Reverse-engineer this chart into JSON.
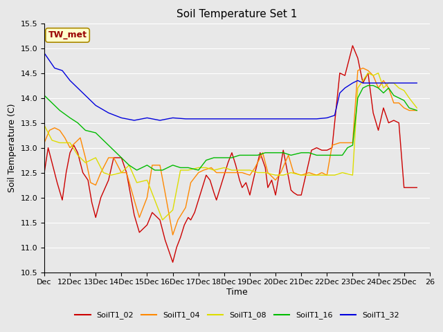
{
  "title": "Soil Temperature Set 1",
  "xlabel": "Time",
  "ylabel": "Soil Temperature (C)",
  "ylim": [
    10.5,
    15.5
  ],
  "xtick_labels": [
    "Dec",
    "12Dec",
    "13Dec",
    "14Dec",
    "15Dec",
    "16Dec",
    "17Dec",
    "18Dec",
    "19Dec",
    "20Dec",
    "21Dec",
    "22Dec",
    "23Dec",
    "24Dec",
    "25Dec",
    "26"
  ],
  "xtick_positions": [
    0,
    1,
    2,
    3,
    4,
    5,
    6,
    7,
    8,
    9,
    10,
    11,
    12,
    13,
    14,
    15
  ],
  "series": {
    "SoilT1_02": {
      "color": "#cc0000",
      "x": [
        0.0,
        0.15,
        0.3,
        0.5,
        0.7,
        0.85,
        1.0,
        1.15,
        1.3,
        1.5,
        1.7,
        1.85,
        2.0,
        2.2,
        2.5,
        2.7,
        3.0,
        3.2,
        3.5,
        3.7,
        4.0,
        4.2,
        4.5,
        4.7,
        5.0,
        5.15,
        5.3,
        5.45,
        5.6,
        5.7,
        5.85,
        6.0,
        6.15,
        6.3,
        6.45,
        6.6,
        6.7,
        6.85,
        7.0,
        7.15,
        7.3,
        7.45,
        7.6,
        7.7,
        7.85,
        8.0,
        8.2,
        8.4,
        8.6,
        8.7,
        8.85,
        9.0,
        9.15,
        9.3,
        9.45,
        9.6,
        9.7,
        9.85,
        10.0,
        10.2,
        10.4,
        10.6,
        10.8,
        11.0,
        11.2,
        11.5,
        11.7,
        12.0,
        12.2,
        12.4,
        12.6,
        12.8,
        13.0,
        13.2,
        13.4,
        13.6,
        13.8,
        14.0,
        14.2,
        14.5
      ],
      "y": [
        12.5,
        13.0,
        12.7,
        12.3,
        11.95,
        12.5,
        12.9,
        13.05,
        12.9,
        12.5,
        12.35,
        11.9,
        11.6,
        12.0,
        12.35,
        12.8,
        12.8,
        12.5,
        11.65,
        11.3,
        11.45,
        11.7,
        11.55,
        11.15,
        10.7,
        11.0,
        11.2,
        11.45,
        11.6,
        11.55,
        11.7,
        11.95,
        12.2,
        12.45,
        12.35,
        12.1,
        11.95,
        12.2,
        12.45,
        12.7,
        12.9,
        12.65,
        12.35,
        12.2,
        12.3,
        12.05,
        12.5,
        12.9,
        12.6,
        12.2,
        12.35,
        12.05,
        12.5,
        12.95,
        12.55,
        12.15,
        12.1,
        12.05,
        12.05,
        12.5,
        12.95,
        13.0,
        12.95,
        12.95,
        13.0,
        14.5,
        14.45,
        15.05,
        14.8,
        14.3,
        14.5,
        13.7,
        13.35,
        13.8,
        13.5,
        13.55,
        13.5,
        12.2,
        12.2,
        12.2
      ]
    },
    "SoilT1_04": {
      "color": "#ff8800",
      "x": [
        0.0,
        0.2,
        0.4,
        0.6,
        0.8,
        1.0,
        1.2,
        1.4,
        1.6,
        1.8,
        2.0,
        2.2,
        2.5,
        2.7,
        3.0,
        3.2,
        3.5,
        3.7,
        4.0,
        4.2,
        4.5,
        4.7,
        5.0,
        5.2,
        5.5,
        5.7,
        6.0,
        6.2,
        6.5,
        6.7,
        7.0,
        7.2,
        7.5,
        7.7,
        8.0,
        8.2,
        8.5,
        8.7,
        9.0,
        9.2,
        9.5,
        9.7,
        10.0,
        10.3,
        10.6,
        10.8,
        11.0,
        11.2,
        11.5,
        11.7,
        12.0,
        12.2,
        12.4,
        12.6,
        12.8,
        13.0,
        13.2,
        13.4,
        13.6,
        13.8,
        14.0,
        14.2,
        14.5
      ],
      "y": [
        13.1,
        13.35,
        13.4,
        13.35,
        13.2,
        13.0,
        13.1,
        13.2,
        12.8,
        12.3,
        12.25,
        12.5,
        12.8,
        12.8,
        12.5,
        12.5,
        11.95,
        11.6,
        12.0,
        12.65,
        12.65,
        12.1,
        11.25,
        11.55,
        11.8,
        12.3,
        12.5,
        12.55,
        12.6,
        12.5,
        12.5,
        12.5,
        12.5,
        12.5,
        12.45,
        12.6,
        12.9,
        12.5,
        12.35,
        12.5,
        12.85,
        12.5,
        12.45,
        12.5,
        12.45,
        12.5,
        12.45,
        13.05,
        13.1,
        13.1,
        13.1,
        14.55,
        14.6,
        14.55,
        14.45,
        14.2,
        14.35,
        14.2,
        13.9,
        13.9,
        13.8,
        13.75,
        13.75
      ]
    },
    "SoilT1_08": {
      "color": "#dddd00",
      "x": [
        0.0,
        0.3,
        0.6,
        1.0,
        1.3,
        1.6,
        2.0,
        2.3,
        2.6,
        3.0,
        3.3,
        3.6,
        4.0,
        4.3,
        4.6,
        5.0,
        5.3,
        5.6,
        6.0,
        6.3,
        6.6,
        7.0,
        7.3,
        7.6,
        8.0,
        8.3,
        8.6,
        9.0,
        9.3,
        9.6,
        10.0,
        10.3,
        10.6,
        11.0,
        11.3,
        11.6,
        12.0,
        12.2,
        12.4,
        12.6,
        12.8,
        13.0,
        13.2,
        13.4,
        13.6,
        13.8,
        14.0,
        14.2,
        14.5
      ],
      "y": [
        13.45,
        13.15,
        13.1,
        13.1,
        12.85,
        12.7,
        12.8,
        12.5,
        12.45,
        12.5,
        12.65,
        12.3,
        12.35,
        11.95,
        11.55,
        11.75,
        12.55,
        12.55,
        12.6,
        12.6,
        12.55,
        12.6,
        12.55,
        12.55,
        12.55,
        12.5,
        12.5,
        12.45,
        12.45,
        12.5,
        12.45,
        12.45,
        12.45,
        12.45,
        12.45,
        12.5,
        12.45,
        14.2,
        14.35,
        14.5,
        14.45,
        14.5,
        14.2,
        14.3,
        14.3,
        14.2,
        14.15,
        14.0,
        13.8
      ]
    },
    "SoilT1_16": {
      "color": "#00bb00",
      "x": [
        0.0,
        0.3,
        0.6,
        1.0,
        1.3,
        1.6,
        2.0,
        2.3,
        2.6,
        3.0,
        3.3,
        3.6,
        4.0,
        4.3,
        4.6,
        5.0,
        5.3,
        5.6,
        6.0,
        6.3,
        6.6,
        7.0,
        7.3,
        7.6,
        8.0,
        8.3,
        8.6,
        9.0,
        9.3,
        9.6,
        10.0,
        10.3,
        10.6,
        11.0,
        11.3,
        11.6,
        11.8,
        12.0,
        12.2,
        12.4,
        12.6,
        12.8,
        13.0,
        13.2,
        13.4,
        13.6,
        13.8,
        14.0,
        14.2,
        14.5
      ],
      "y": [
        14.05,
        13.9,
        13.75,
        13.6,
        13.5,
        13.35,
        13.3,
        13.15,
        13.0,
        12.8,
        12.65,
        12.55,
        12.65,
        12.55,
        12.55,
        12.65,
        12.6,
        12.6,
        12.55,
        12.75,
        12.8,
        12.8,
        12.8,
        12.85,
        12.85,
        12.85,
        12.9,
        12.9,
        12.9,
        12.85,
        12.9,
        12.9,
        12.85,
        12.85,
        12.85,
        12.85,
        13.0,
        13.05,
        14.0,
        14.2,
        14.25,
        14.25,
        14.2,
        14.1,
        14.2,
        14.05,
        14.0,
        13.95,
        13.8,
        13.75
      ]
    },
    "SoilT1_32": {
      "color": "#0000dd",
      "x": [
        0.0,
        0.2,
        0.4,
        0.7,
        1.0,
        1.3,
        1.6,
        2.0,
        2.5,
        3.0,
        3.5,
        4.0,
        4.5,
        5.0,
        5.5,
        6.0,
        6.5,
        7.0,
        7.5,
        8.0,
        8.5,
        9.0,
        9.5,
        10.0,
        10.3,
        10.6,
        11.0,
        11.3,
        11.5,
        11.7,
        12.0,
        12.2,
        12.4,
        12.6,
        12.8,
        13.0,
        13.2,
        13.4,
        13.6,
        13.8,
        14.0,
        14.2,
        14.5
      ],
      "y": [
        14.9,
        14.75,
        14.6,
        14.55,
        14.35,
        14.2,
        14.05,
        13.85,
        13.7,
        13.6,
        13.55,
        13.6,
        13.55,
        13.6,
        13.58,
        13.58,
        13.58,
        13.58,
        13.58,
        13.58,
        13.58,
        13.58,
        13.58,
        13.58,
        13.58,
        13.58,
        13.6,
        13.65,
        14.1,
        14.2,
        14.3,
        14.35,
        14.3,
        14.3,
        14.3,
        14.3,
        14.3,
        14.3,
        14.3,
        14.3,
        14.3,
        14.3,
        14.3
      ]
    }
  },
  "annotation_box": {
    "text": "TW_met",
    "text_color": "#990000",
    "box_facecolor": "#ffffcc",
    "box_edgecolor": "#aa8800",
    "fontsize": 9,
    "fontweight": "bold"
  },
  "fig_facecolor": "#e8e8e8",
  "plot_facecolor": "#e8e8e8",
  "grid_color": "#ffffff",
  "title_fontsize": 11,
  "tick_fontsize": 8,
  "legend_labels": [
    "SoilT1_02",
    "SoilT1_04",
    "SoilT1_08",
    "SoilT1_16",
    "SoilT1_32"
  ],
  "legend_colors": [
    "#cc0000",
    "#ff8800",
    "#dddd00",
    "#00bb00",
    "#0000dd"
  ]
}
